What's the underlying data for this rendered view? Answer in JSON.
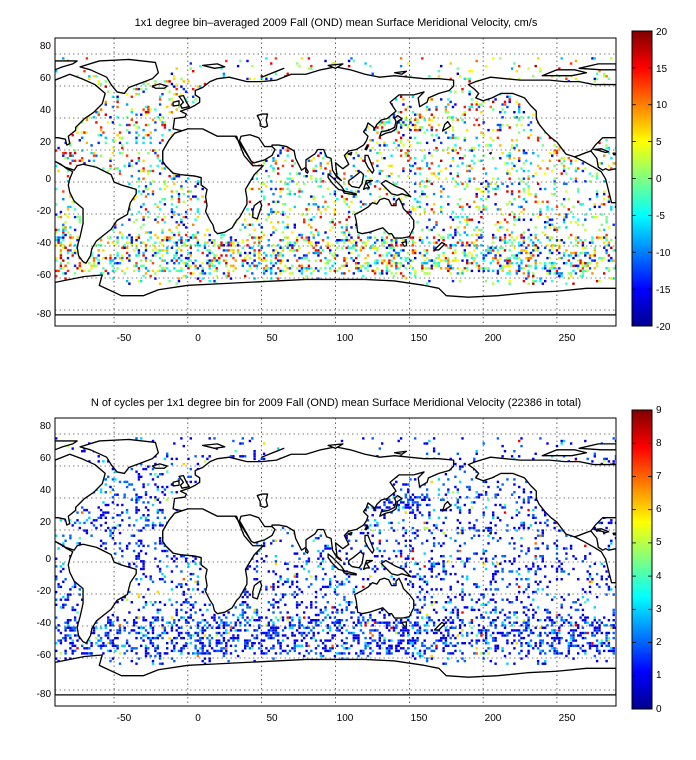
{
  "figure": {
    "panels": [
      {
        "id": "velocity",
        "title": "1x1 degree bin–averaged 2009 Fall (OND) mean Surface Meridional Velocity, cm/s",
        "x_ticks": [
          "-50",
          "0",
          "50",
          "100",
          "150",
          "200",
          "250"
        ],
        "y_ticks": [
          "80",
          "60",
          "40",
          "20",
          "0",
          "-20",
          "-40",
          "-60",
          "-80"
        ],
        "colorbar": {
          "ticks": [
            "20",
            "15",
            "10",
            "5",
            "0",
            "-5",
            "-10",
            "-15",
            "-20"
          ],
          "range": [
            -20,
            20
          ],
          "colormap": "jet"
        }
      },
      {
        "id": "cycles",
        "title": "N of cycles per 1x1 degree bin for 2009 Fall (OND) mean Surface Meridional Velocity (22386 in total)",
        "x_ticks": [
          "-50",
          "0",
          "50",
          "100",
          "150",
          "200",
          "250"
        ],
        "y_ticks": [
          "80",
          "60",
          "40",
          "20",
          "0",
          "-20",
          "-40",
          "-60",
          "-80"
        ],
        "colorbar": {
          "ticks": [
            "9",
            "8",
            "7",
            "6",
            "5",
            "4",
            "3",
            "2",
            "1",
            "0"
          ],
          "range": [
            0,
            9
          ],
          "colormap": "jet"
        }
      }
    ],
    "map_extent": {
      "lon": [
        -90,
        290
      ],
      "lat": [
        -90,
        90
      ],
      "grid_step_lon": 50,
      "grid_step_lat": 20
    },
    "colors": {
      "land_fill": "#ffffff",
      "coastline": "#000000",
      "background": "#ffffff"
    }
  }
}
